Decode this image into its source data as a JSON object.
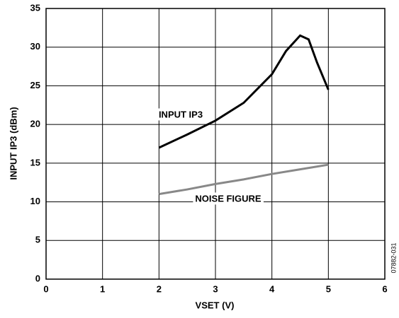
{
  "chart_data": {
    "type": "line",
    "xlabel": "VSET (V)",
    "ylabel": "INPUT IP3 (dBm)",
    "annotations": [
      "INPUT IP3",
      "NOISE FIGURE"
    ],
    "note": "07882-031",
    "xlim": [
      0,
      6
    ],
    "xticks": [
      0,
      1,
      2,
      3,
      4,
      5,
      6
    ],
    "ylim": [
      0,
      35
    ],
    "yticks": [
      0,
      5,
      10,
      15,
      20,
      25,
      30,
      35
    ],
    "grid": true,
    "series": [
      {
        "name": "INPUT IP3",
        "color": "#000000",
        "x": [
          2,
          2.5,
          3,
          3.5,
          4,
          4.25,
          4.5,
          4.65,
          4.8,
          5
        ],
        "values": [
          17,
          18.7,
          20.5,
          22.8,
          26.5,
          29.5,
          31.5,
          31,
          28,
          24.5
        ]
      },
      {
        "name": "NOISE FIGURE",
        "color": "#888888",
        "x": [
          2,
          2.5,
          3,
          3.5,
          4,
          4.5,
          5
        ],
        "values": [
          11,
          11.6,
          12.3,
          12.9,
          13.6,
          14.2,
          14.8
        ]
      }
    ]
  }
}
